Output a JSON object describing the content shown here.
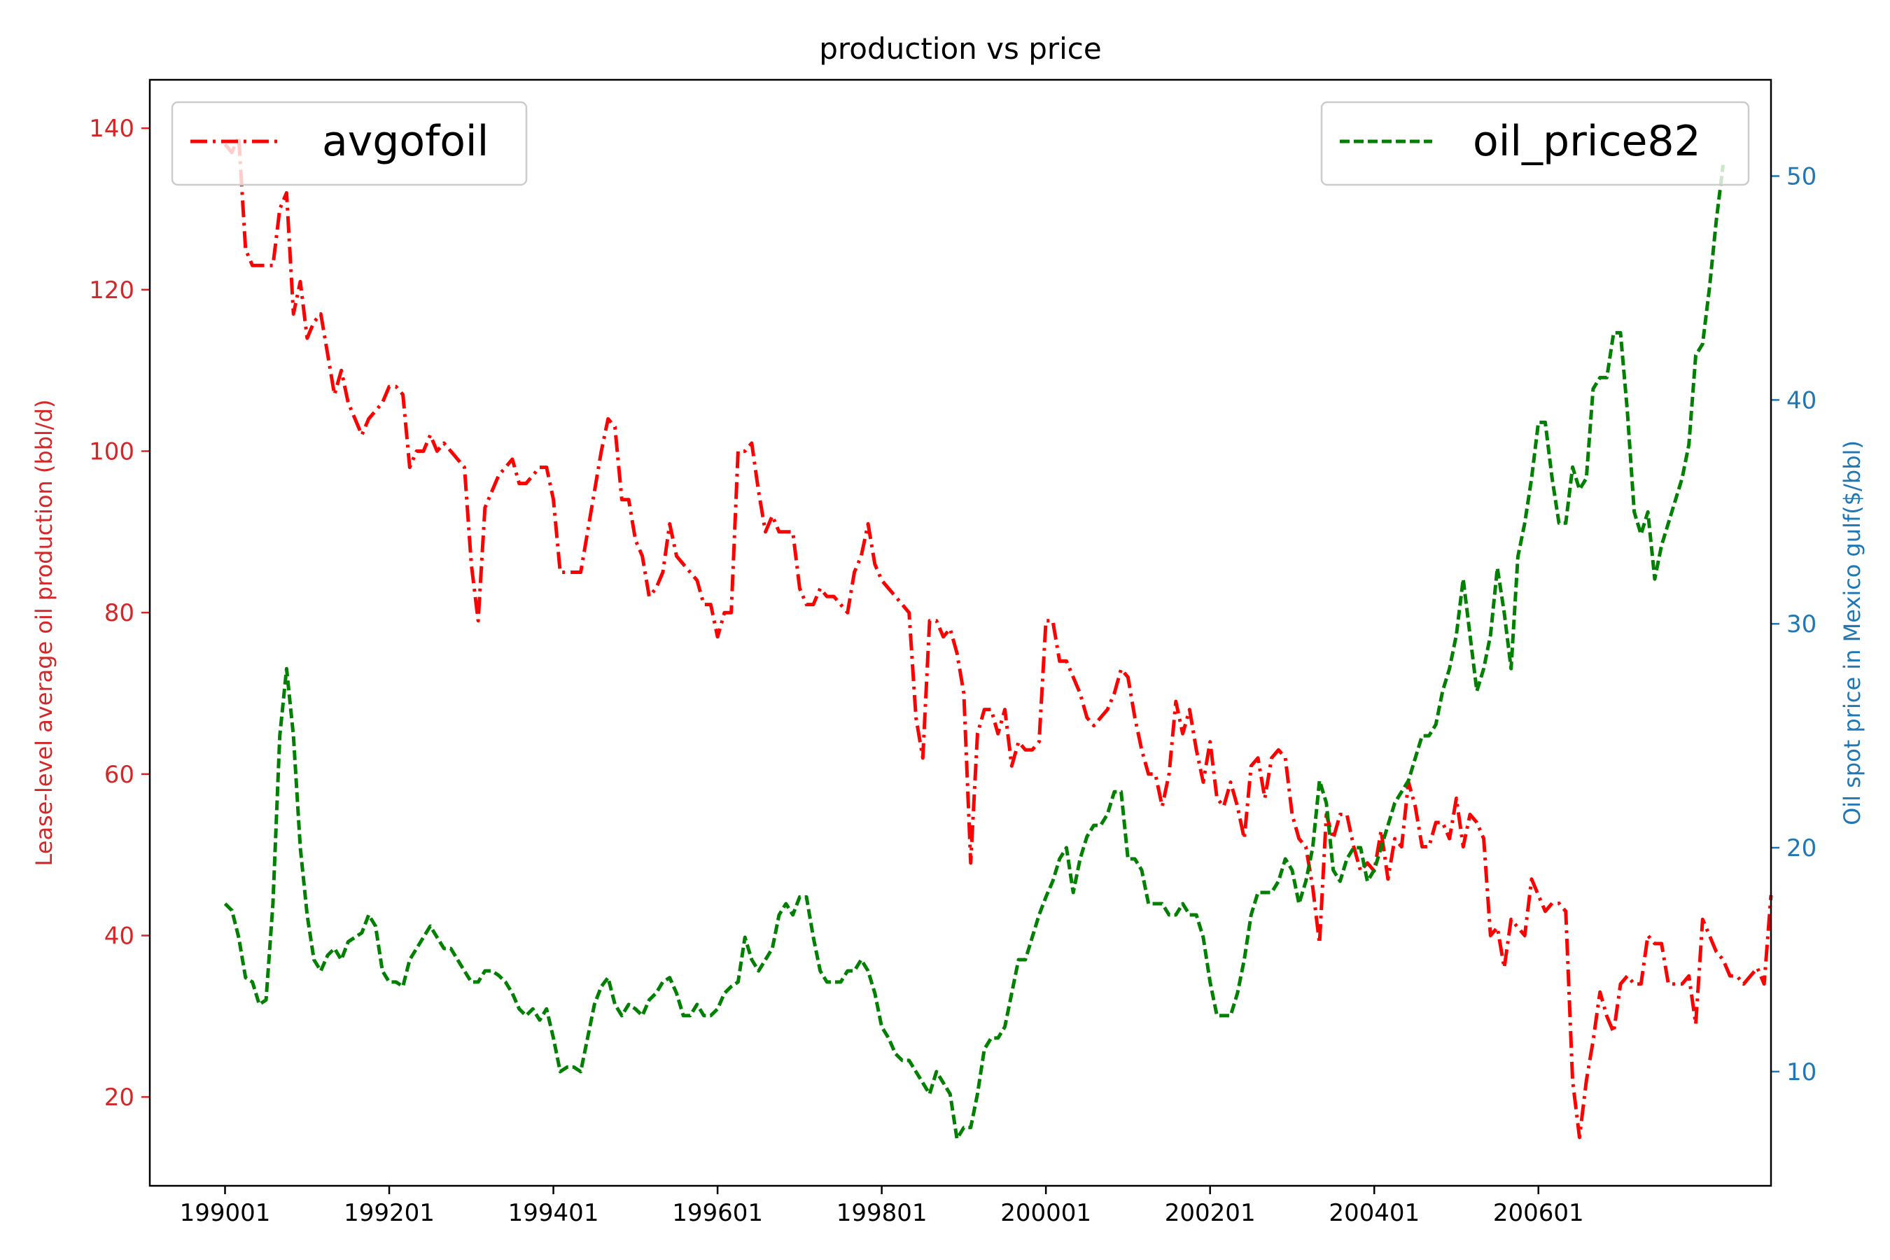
{
  "chart_data": {
    "type": "line",
    "title": "production vs price",
    "x_tick_labels": [
      "199001",
      "199201",
      "199401",
      "199601",
      "199801",
      "200001",
      "200201",
      "200401",
      "200601"
    ],
    "x_tick_index": [
      0,
      24,
      48,
      72,
      96,
      120,
      144,
      168,
      192
    ],
    "x_range": [
      -11,
      226
    ],
    "left_axis": {
      "label": "Lease-level average oil production (bbl/d)",
      "range": [
        9,
        146
      ],
      "ticks": [
        20,
        40,
        60,
        80,
        100,
        120,
        140
      ],
      "color": "#d62728"
    },
    "right_axis": {
      "label": "Oil spot price in Mexico gulf($/bbl)",
      "range": [
        4.9,
        54.3
      ],
      "ticks": [
        10,
        20,
        30,
        40,
        50
      ],
      "color": "#1f77b4"
    },
    "legend_left_placement": "top-left",
    "legend_right_placement": "top-right",
    "grid": false,
    "series": [
      {
        "name": "avgofoil",
        "axis": "left",
        "color": "#ff0000",
        "style": "dashdot",
        "x_step": 1,
        "values": [
          138,
          137,
          139,
          125,
          123,
          123,
          123,
          123,
          130,
          132,
          117,
          121,
          114,
          116,
          117,
          112,
          107,
          110,
          106,
          104,
          102,
          104,
          105,
          106,
          108,
          108,
          107,
          98,
          100,
          100,
          102,
          100,
          101,
          100,
          99,
          98,
          86,
          79,
          93,
          95,
          97,
          98,
          99,
          96,
          96,
          97,
          98,
          98,
          94,
          85,
          85,
          85,
          85,
          90,
          95,
          100,
          104,
          103,
          94,
          94,
          89,
          87,
          82,
          83,
          85,
          91,
          87,
          86,
          85,
          84,
          81,
          81,
          77,
          80,
          80,
          100,
          100,
          101,
          95,
          90,
          92,
          90,
          90,
          90,
          83,
          81,
          81,
          83,
          82,
          82,
          81,
          80,
          85,
          87,
          91,
          86,
          84,
          83,
          82,
          81,
          80,
          67,
          62,
          79,
          79,
          77,
          78,
          75,
          70,
          49,
          65,
          68,
          68,
          65,
          68,
          61,
          64,
          63,
          63,
          64,
          79,
          79,
          74,
          74,
          72,
          70,
          67,
          66,
          67,
          68,
          70,
          73,
          72,
          67,
          63,
          60,
          60,
          56,
          60,
          69,
          65,
          68,
          63,
          59,
          64,
          57,
          56,
          59,
          56,
          52,
          61,
          62,
          57,
          62,
          63,
          62,
          55,
          52,
          51,
          46,
          39,
          55,
          52,
          55,
          55,
          51,
          48,
          49,
          48,
          53,
          47,
          52,
          51,
          59,
          56,
          51,
          51,
          54,
          54,
          52,
          57,
          51,
          55,
          54,
          52,
          40,
          41,
          36,
          42,
          41,
          40,
          47,
          45,
          43,
          44,
          44,
          43,
          22,
          15,
          22,
          27,
          33,
          30,
          28,
          34,
          35,
          34,
          34,
          40,
          39,
          39,
          34,
          34,
          34,
          35,
          29,
          42,
          40,
          38,
          37,
          35,
          35,
          34,
          35,
          36,
          34,
          45
        ]
      },
      {
        "name": "oil_price82",
        "axis": "right",
        "color": "#008000",
        "style": "dashed",
        "x_step": 1,
        "values": [
          17.5,
          17.2,
          16.0,
          14.2,
          14.0,
          13.0,
          13.2,
          17.5,
          25.0,
          28.0,
          25.0,
          20.0,
          17.0,
          15.0,
          14.5,
          15.2,
          15.5,
          15.0,
          15.8,
          16.0,
          16.2,
          17.0,
          16.5,
          14.5,
          14.0,
          14.0,
          13.8,
          15.0,
          15.5,
          16.0,
          16.5,
          16.0,
          15.5,
          15.5,
          15.0,
          14.5,
          14.0,
          14.0,
          14.5,
          14.5,
          14.3,
          14.0,
          13.5,
          12.8,
          12.5,
          12.8,
          12.3,
          12.8,
          11.5,
          10.0,
          10.2,
          10.2,
          10.0,
          11.5,
          13.0,
          13.8,
          14.2,
          13.0,
          12.5,
          13.0,
          12.8,
          12.5,
          13.2,
          13.5,
          14.0,
          14.2,
          13.5,
          12.5,
          12.5,
          13.0,
          12.5,
          12.5,
          12.8,
          13.5,
          13.8,
          14.0,
          16.0,
          15.0,
          14.5,
          15.0,
          15.5,
          17.0,
          17.5,
          17.0,
          17.8,
          17.8,
          16.0,
          14.5,
          14.0,
          14.0,
          14.0,
          14.5,
          14.5,
          15.0,
          14.5,
          13.5,
          12.0,
          11.5,
          10.8,
          10.5,
          10.5,
          10.0,
          9.5,
          9.0,
          10.0,
          9.5,
          9.0,
          7.0,
          7.5,
          7.5,
          9.0,
          11.0,
          11.5,
          11.5,
          12.0,
          13.5,
          15.0,
          15.0,
          16.0,
          17.0,
          17.8,
          18.5,
          19.5,
          20.0,
          18.0,
          19.5,
          20.5,
          21.0,
          21.0,
          21.5,
          22.5,
          22.5,
          19.5,
          19.5,
          19.0,
          17.5,
          17.5,
          17.5,
          17.0,
          17.0,
          17.5,
          17.0,
          17.0,
          16.0,
          14.0,
          12.5,
          12.5,
          12.5,
          13.5,
          15.0,
          17.0,
          18.0,
          18.0,
          18.0,
          18.5,
          19.5,
          19.0,
          17.5,
          18.5,
          20.0,
          23.0,
          22.0,
          19.0,
          18.5,
          19.5,
          20.0,
          20.0,
          18.5,
          19.0,
          20.0,
          21.0,
          22.0,
          22.5,
          23.0,
          24.0,
          25.0,
          25.0,
          25.5,
          27.0,
          28.0,
          29.5,
          32.0,
          29.5,
          27.0,
          28.0,
          29.5,
          32.5,
          30.5,
          28.0,
          33.0,
          34.5,
          36.5,
          39.0,
          39.0,
          36.5,
          34.5,
          34.5,
          37.0,
          36.0,
          36.5,
          40.5,
          41.0,
          41.0,
          43.0,
          43.0,
          39.5,
          35.0,
          34.0,
          35.0,
          32.0,
          33.5,
          34.5,
          35.5,
          36.5,
          38.0,
          42.0,
          42.5,
          45.0,
          48.0,
          50.5
        ]
      }
    ]
  }
}
